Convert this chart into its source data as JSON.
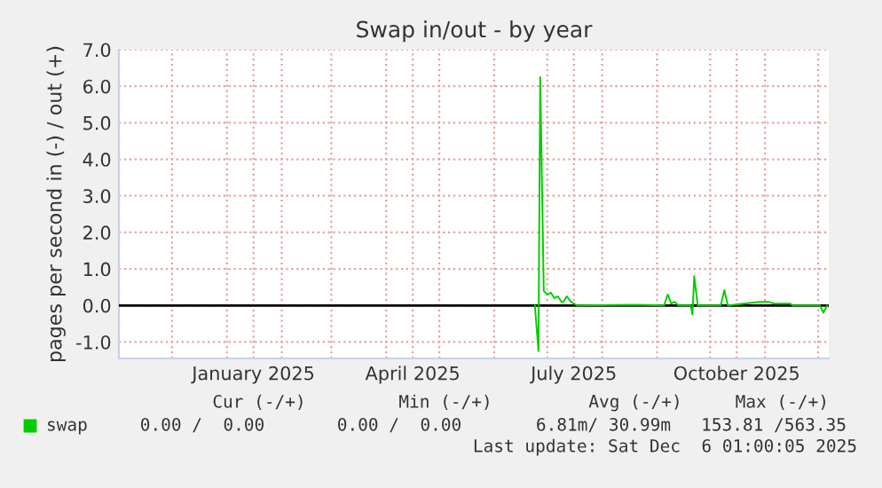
{
  "chart_data": {
    "type": "line",
    "title": "Swap in/out - by year",
    "ylabel": "pages per second in (-) / out (+)",
    "series": [
      {
        "name": "swap",
        "color": "#00cc00",
        "x": [
          "2025-06-24",
          "2025-06-26",
          "2025-06-27",
          "2025-06-29",
          "2025-07-01",
          "2025-07-03",
          "2025-07-05",
          "2025-07-07",
          "2025-07-09",
          "2025-07-10",
          "2025-07-12",
          "2025-07-14",
          "2025-07-16",
          "2025-07-18",
          "2025-08-19",
          "2025-09-05",
          "2025-09-07",
          "2025-09-09",
          "2025-09-11",
          "2025-09-13",
          "2025-09-20",
          "2025-09-21",
          "2025-09-22",
          "2025-09-24",
          "2025-10-07",
          "2025-10-09",
          "2025-10-11",
          "2025-10-29",
          "2025-11-03",
          "2025-11-06",
          "2025-11-15",
          "2025-11-17",
          "2025-12-02",
          "2025-12-04",
          "2025-12-06"
        ],
        "values": [
          0,
          -1.25,
          6.25,
          0.4,
          0.3,
          0.35,
          0.2,
          0.25,
          0.1,
          0.1,
          0.25,
          0.12,
          0.05,
          0,
          0.02,
          0,
          0.3,
          0.05,
          0.1,
          0,
          0,
          -0.25,
          0.8,
          0,
          0,
          0.42,
          0,
          0.1,
          0.1,
          0.05,
          0.05,
          0,
          0,
          -0.2,
          0
        ]
      }
    ],
    "xlim": [
      "2024-11-01",
      "2025-12-07"
    ],
    "xticks": [
      {
        "value": "2025-01-16",
        "label": "January 2025"
      },
      {
        "value": "2025-04-16",
        "label": "April 2025"
      },
      {
        "value": "2025-07-16",
        "label": "July 2025"
      },
      {
        "value": "2025-10-16",
        "label": "October 2025"
      }
    ],
    "ylim": [
      -1.45,
      7.0
    ],
    "yticks": [
      {
        "value": -1,
        "label": "-1.0"
      },
      {
        "value": 0,
        "label": "0.0"
      },
      {
        "value": 1,
        "label": "1.0"
      },
      {
        "value": 2,
        "label": "2.0"
      },
      {
        "value": 3,
        "label": "3.0"
      },
      {
        "value": 4,
        "label": "4.0"
      },
      {
        "value": 5,
        "label": "5.0"
      },
      {
        "value": 6,
        "label": "6.0"
      },
      {
        "value": 7,
        "label": "7.0"
      }
    ],
    "ref_lines": [
      {
        "axis": "y",
        "value": 0,
        "color": "#000000"
      }
    ],
    "grid": true,
    "legend": "bottom left",
    "line_style": "solid",
    "marker": "none",
    "annotations": [
      "Cur (-/+)",
      "Min (-/+)",
      "Avg (-/+)",
      "Max (-/+)",
      "0.00 /  0.00",
      "0.00 /  0.00",
      "6.81m/ 30.99m",
      "153.81 /563.35",
      "Last update: Sat Dec  6 01:00:05 2025"
    ]
  }
}
